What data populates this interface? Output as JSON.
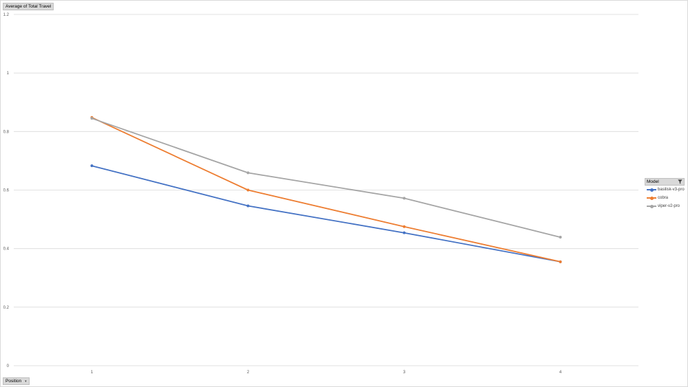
{
  "value_field": {
    "label": "Average  of Total Travel"
  },
  "axis_field": {
    "label": "Position",
    "dropdown_icon": "dropdown-arrow-icon"
  },
  "legend": {
    "title": "Model",
    "filter_icon": "filter-icon"
  },
  "chart_data": {
    "type": "line",
    "x": [
      "1",
      "2",
      "3",
      "4"
    ],
    "ylim": [
      0,
      1.2
    ],
    "yticks": [
      "0",
      "0.2",
      "0.4",
      "0.6",
      "0.8",
      "1",
      "1.2"
    ],
    "grid": true,
    "legend_position": "right",
    "series": [
      {
        "name": "basilisk-v3-pro",
        "color": "#4472c4",
        "values": [
          0.683,
          0.546,
          0.454,
          0.355
        ]
      },
      {
        "name": "cobra",
        "color": "#ed7d31",
        "values": [
          0.848,
          0.6,
          0.475,
          0.355
        ]
      },
      {
        "name": "viper-v2-pro",
        "color": "#a5a5a5",
        "values": [
          0.845,
          0.659,
          0.572,
          0.439
        ]
      }
    ]
  }
}
